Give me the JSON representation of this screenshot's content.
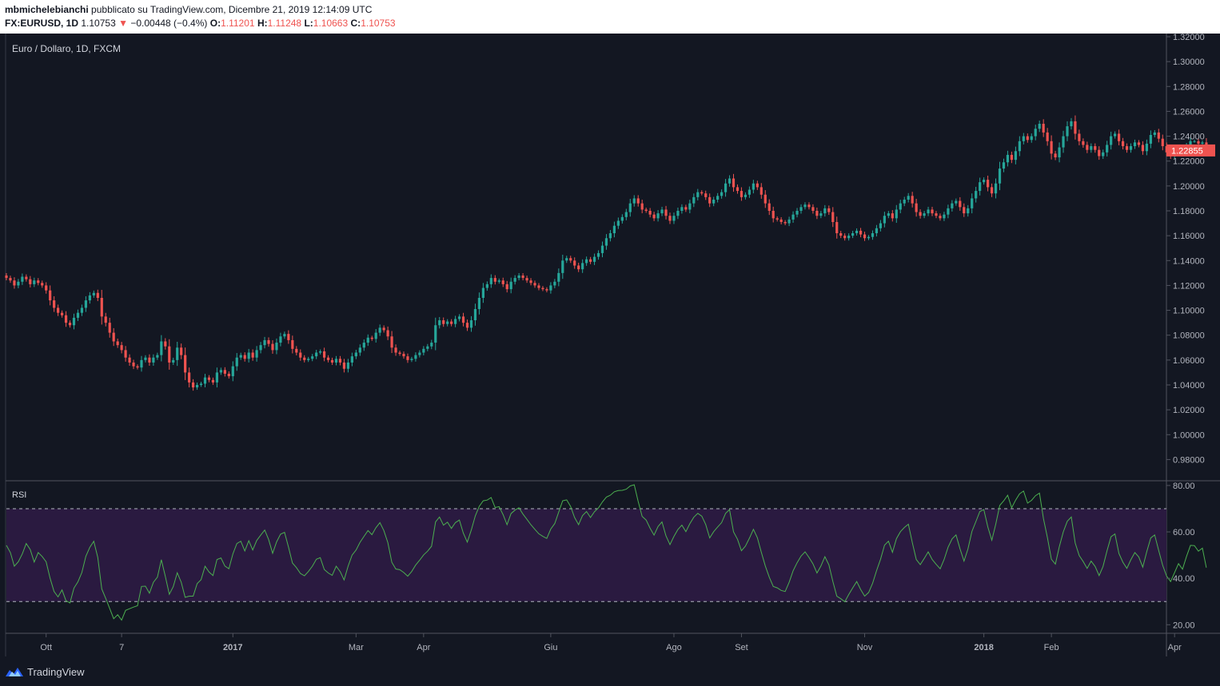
{
  "header": {
    "author": "mbmichelebianchi",
    "published_text": "pubblicato su TradingView.com, Dicembre 21, 2019 12:14:09 UTC",
    "symbol": "FX:EURUSD, 1D",
    "last_price": "1.10753",
    "change_arrow": "▼",
    "change": "−0.00448 (−0.4%)",
    "open_label": "O:",
    "open_value": "1.11201",
    "high_label": "H:",
    "high_value": "1.11248",
    "low_label": "L:",
    "low_value": "1.10663",
    "close_label": "C:",
    "close_value": "1.10753"
  },
  "footer": {
    "brand": "TradingView"
  },
  "colors": {
    "background": "#131722",
    "up": "#26a69a",
    "down": "#ef5350",
    "rsi_line": "#4caf50",
    "rsi_band": "#2a1a40",
    "axis_text": "#b2b5be"
  },
  "chart_data": [
    {
      "type": "candlestick",
      "title": "Euro / Dollaro, 1D, FXCM",
      "ylim": [
        0.97,
        1.32
      ],
      "yticks": [
        "0.98000",
        "1.00000",
        "1.02000",
        "1.04000",
        "1.06000",
        "1.08000",
        "1.10000",
        "1.12000",
        "1.14000",
        "1.16000",
        "1.18000",
        "1.20000",
        "1.22000",
        "1.24000",
        "1.26000",
        "1.28000",
        "1.30000",
        "1.32000"
      ],
      "xticks": [
        {
          "label": "Ott",
          "index": 10,
          "bold": false
        },
        {
          "label": "7",
          "index": 29,
          "bold": false
        },
        {
          "label": "2017",
          "index": 57,
          "bold": true
        },
        {
          "label": "Mar",
          "index": 88,
          "bold": false
        },
        {
          "label": "Apr",
          "index": 105,
          "bold": false
        },
        {
          "label": "Giu",
          "index": 137,
          "bold": false
        },
        {
          "label": "Ago",
          "index": 168,
          "bold": false
        },
        {
          "label": "Set",
          "index": 185,
          "bold": false
        },
        {
          "label": "Nov",
          "index": 216,
          "bold": false
        },
        {
          "label": "2018",
          "index": 246,
          "bold": true
        },
        {
          "label": "Feb",
          "index": 263,
          "bold": false
        },
        {
          "label": "Apr",
          "index": 294,
          "bold": false
        }
      ],
      "last_price_label": "1.22855",
      "last_price_value": 1.22855,
      "closes": [
        1.126,
        1.124,
        1.12,
        1.123,
        1.127,
        1.125,
        1.121,
        1.124,
        1.122,
        1.12,
        1.116,
        1.108,
        1.102,
        1.098,
        1.096,
        1.09,
        1.088,
        1.094,
        1.098,
        1.102,
        1.108,
        1.112,
        1.114,
        1.11,
        1.095,
        1.09,
        1.082,
        1.075,
        1.072,
        1.068,
        1.062,
        1.058,
        1.055,
        1.054,
        1.06,
        1.062,
        1.058,
        1.062,
        1.064,
        1.075,
        1.071,
        1.058,
        1.06,
        1.07,
        1.064,
        1.05,
        1.042,
        1.038,
        1.04,
        1.041,
        1.046,
        1.044,
        1.042,
        1.05,
        1.052,
        1.049,
        1.047,
        1.055,
        1.062,
        1.064,
        1.061,
        1.066,
        1.062,
        1.068,
        1.072,
        1.076,
        1.073,
        1.068,
        1.074,
        1.079,
        1.081,
        1.076,
        1.069,
        1.066,
        1.062,
        1.06,
        1.061,
        1.063,
        1.066,
        1.067,
        1.062,
        1.06,
        1.058,
        1.061,
        1.058,
        1.053,
        1.058,
        1.063,
        1.066,
        1.07,
        1.074,
        1.078,
        1.077,
        1.082,
        1.086,
        1.084,
        1.079,
        1.07,
        1.066,
        1.065,
        1.063,
        1.06,
        1.061,
        1.064,
        1.066,
        1.069,
        1.071,
        1.074,
        1.088,
        1.092,
        1.089,
        1.091,
        1.089,
        1.093,
        1.095,
        1.09,
        1.086,
        1.092,
        1.101,
        1.11,
        1.118,
        1.121,
        1.126,
        1.123,
        1.124,
        1.121,
        1.117,
        1.123,
        1.126,
        1.128,
        1.126,
        1.124,
        1.122,
        1.12,
        1.118,
        1.117,
        1.116,
        1.12,
        1.123,
        1.13,
        1.14,
        1.142,
        1.14,
        1.136,
        1.133,
        1.138,
        1.141,
        1.139,
        1.143,
        1.146,
        1.152,
        1.158,
        1.162,
        1.168,
        1.172,
        1.175,
        1.179,
        1.186,
        1.19,
        1.186,
        1.181,
        1.18,
        1.177,
        1.174,
        1.178,
        1.181,
        1.176,
        1.172,
        1.176,
        1.18,
        1.183,
        1.181,
        1.186,
        1.191,
        1.195,
        1.194,
        1.191,
        1.186,
        1.189,
        1.192,
        1.195,
        1.202,
        1.206,
        1.199,
        1.196,
        1.191,
        1.193,
        1.197,
        1.202,
        1.199,
        1.193,
        1.186,
        1.18,
        1.174,
        1.173,
        1.171,
        1.17,
        1.173,
        1.177,
        1.18,
        1.183,
        1.185,
        1.183,
        1.18,
        1.176,
        1.178,
        1.182,
        1.179,
        1.171,
        1.162,
        1.16,
        1.158,
        1.16,
        1.162,
        1.164,
        1.161,
        1.158,
        1.159,
        1.162,
        1.166,
        1.17,
        1.176,
        1.178,
        1.174,
        1.181,
        1.186,
        1.189,
        1.192,
        1.186,
        1.179,
        1.176,
        1.178,
        1.181,
        1.178,
        1.176,
        1.174,
        1.177,
        1.182,
        1.186,
        1.188,
        1.183,
        1.178,
        1.182,
        1.19,
        1.196,
        1.203,
        1.205,
        1.199,
        1.194,
        1.202,
        1.214,
        1.219,
        1.225,
        1.221,
        1.228,
        1.236,
        1.24,
        1.237,
        1.24,
        1.246,
        1.25,
        1.243,
        1.236,
        1.226,
        1.223,
        1.231,
        1.24,
        1.248,
        1.252,
        1.242,
        1.236,
        1.233,
        1.229,
        1.232,
        1.229,
        1.224,
        1.227,
        1.233,
        1.24,
        1.242,
        1.236,
        1.232,
        1.229,
        1.232,
        1.235,
        1.233,
        1.228,
        1.234,
        1.241,
        1.243,
        1.238,
        1.232,
        1.227,
        1.224,
        1.227,
        1.23,
        1.228,
        1.232,
        1.236,
        1.236,
        1.234,
        1.235,
        1.22855
      ]
    },
    {
      "type": "line",
      "title": "RSI",
      "ylim": [
        17,
        81
      ],
      "yticks": [
        "20.00",
        "40.00",
        "60.00",
        "80.00"
      ],
      "upper_band": 70,
      "lower_band": 30,
      "values": [
        54.2,
        51.1,
        45.2,
        47.1,
        50.5,
        55.0,
        52.4,
        47.0,
        51.1,
        49.4,
        47.1,
        40.0,
        34.3,
        32.0,
        35.0,
        30.4,
        29.4,
        35.8,
        38.5,
        42.5,
        49.5,
        53.4,
        56.0,
        49.0,
        35.4,
        31.3,
        27.0,
        22.6,
        24.3,
        22.0,
        26.2,
        26.9,
        27.6,
        28.2,
        36.5,
        36.6,
        33.6,
        38.3,
        40.5,
        48.0,
        40.8,
        33.1,
        36.4,
        42.4,
        38.3,
        31.8,
        32.3,
        32.3,
        37.7,
        39.4,
        45.2,
        42.7,
        41.2,
        48.1,
        48.8,
        45.3,
        44.1,
        50.5,
        55.0,
        56.0,
        51.8,
        56.2,
        52.2,
        56.3,
        58.6,
        60.8,
        56.7,
        50.8,
        55.7,
        59.0,
        59.8,
        53.4,
        46.6,
        44.6,
        42.1,
        41.1,
        42.9,
        45.2,
        48.2,
        48.9,
        43.8,
        42.3,
        41.3,
        45.2,
        42.9,
        39.3,
        45.2,
        50.0,
        52.2,
        55.5,
        58.1,
        60.6,
        58.8,
        61.8,
        64.0,
        60.6,
        55.4,
        46.9,
        44.0,
        43.7,
        42.5,
        40.9,
        42.9,
        45.7,
        47.8,
        50.1,
        51.7,
        53.8,
        64.3,
        66.4,
        62.9,
        64.2,
        61.5,
        64.0,
        65.1,
        59.5,
        55.6,
        60.8,
        66.9,
        71.0,
        73.4,
        73.7,
        74.8,
        70.5,
        70.9,
        67.4,
        63.1,
        67.9,
        69.4,
        70.4,
        67.7,
        65.4,
        63.1,
        61.1,
        59.2,
        58.1,
        57.2,
        61.2,
        63.6,
        68.5,
        73.4,
        73.8,
        71.0,
        66.2,
        63.1,
        67.0,
        68.8,
        66.2,
        68.7,
        70.3,
        72.9,
        75.0,
        75.8,
        77.3,
        77.8,
        77.9,
        78.4,
        79.8,
        80.3,
        73.2,
        66.7,
        65.1,
        61.6,
        58.6,
        62.3,
        64.3,
        58.3,
        54.5,
        58.1,
        61.0,
        62.9,
        60.1,
        63.5,
        66.3,
        68.0,
        66.8,
        63.2,
        57.4,
        60.1,
        62.1,
        64.0,
        68.0,
        69.6,
        60.0,
        56.8,
        51.9,
        53.9,
        57.3,
        61.1,
        57.5,
        51.2,
        45.3,
        40.5,
        36.5,
        35.9,
        34.8,
        34.3,
        38.3,
        43.3,
        46.7,
        49.6,
        51.4,
        49.0,
        46.2,
        42.3,
        45.3,
        49.3,
        45.8,
        38.6,
        32.3,
        31.2,
        29.9,
        33.0,
        35.9,
        38.6,
        35.2,
        32.3,
        33.9,
        37.9,
        43.3,
        48.2,
        54.3,
        56.0,
        51.2,
        57.1,
        60.1,
        61.9,
        63.3,
        55.3,
        48.1,
        45.9,
        48.6,
        51.4,
        48.1,
        46.0,
        44.1,
        48.1,
        53.4,
        57.0,
        58.7,
        52.7,
        47.4,
        52.6,
        60.2,
        64.5,
        68.8,
        69.6,
        62.1,
        56.4,
        63.3,
        71.4,
        73.4,
        75.8,
        70.4,
        73.7,
        76.4,
        77.6,
        72.4,
        73.6,
        75.6,
        76.7,
        65.7,
        57.6,
        48.2,
        46.1,
        53.6,
        60.0,
        64.6,
        66.4,
        55.2,
        49.8,
        47.2,
        44.3,
        47.4,
        45.1,
        41.2,
        45.1,
        51.9,
        57.9,
        59.1,
        50.7,
        46.9,
        44.3,
        48.0,
        51.1,
        49.2,
        44.8,
        51.5,
        57.4,
        58.7,
        52.0,
        45.6,
        41.0,
        38.6,
        42.5,
        46.3,
        43.9,
        49.4,
        54.2,
        54.1,
        51.7,
        53.0,
        44.6
      ]
    }
  ]
}
